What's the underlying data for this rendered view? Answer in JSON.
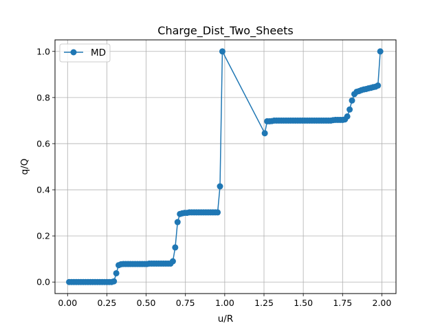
{
  "chart_data": {
    "type": "line",
    "title": "Charge_Dist_Two_Sheets",
    "xlabel": "u/R",
    "ylabel": "q/Q",
    "xlim": [
      -0.08,
      2.09
    ],
    "ylim": [
      -0.05,
      1.05
    ],
    "xticks": [
      0.0,
      0.25,
      0.5,
      0.75,
      1.0,
      1.25,
      1.5,
      1.75,
      2.0
    ],
    "xtick_labels": [
      "0.00",
      "0.25",
      "0.50",
      "0.75",
      "1.00",
      "1.25",
      "1.50",
      "1.75",
      "2.00"
    ],
    "yticks": [
      0.0,
      0.2,
      0.4,
      0.6,
      0.8,
      1.0
    ],
    "ytick_labels": [
      "0.0",
      "0.2",
      "0.4",
      "0.6",
      "0.8",
      "1.0"
    ],
    "grid": true,
    "legend_position": "top-left",
    "series": [
      {
        "name": "MD",
        "color": "#1f77b4",
        "marker": "circle",
        "x": [
          0.01,
          0.025,
          0.04,
          0.055,
          0.07,
          0.085,
          0.1,
          0.115,
          0.13,
          0.145,
          0.16,
          0.175,
          0.19,
          0.205,
          0.22,
          0.235,
          0.25,
          0.265,
          0.28,
          0.295,
          0.31,
          0.325,
          0.34,
          0.355,
          0.37,
          0.385,
          0.4,
          0.415,
          0.43,
          0.445,
          0.46,
          0.475,
          0.49,
          0.505,
          0.52,
          0.535,
          0.55,
          0.565,
          0.58,
          0.595,
          0.61,
          0.625,
          0.64,
          0.655,
          0.67,
          0.685,
          0.7,
          0.715,
          0.73,
          0.745,
          0.76,
          0.775,
          0.79,
          0.805,
          0.82,
          0.835,
          0.85,
          0.865,
          0.88,
          0.895,
          0.91,
          0.925,
          0.94,
          0.955,
          0.97,
          0.985,
          1.255,
          1.27,
          1.285,
          1.3,
          1.315,
          1.33,
          1.345,
          1.36,
          1.375,
          1.39,
          1.405,
          1.42,
          1.435,
          1.45,
          1.465,
          1.48,
          1.495,
          1.51,
          1.525,
          1.54,
          1.555,
          1.57,
          1.585,
          1.6,
          1.615,
          1.63,
          1.645,
          1.66,
          1.675,
          1.69,
          1.705,
          1.72,
          1.735,
          1.75,
          1.765,
          1.78,
          1.795,
          1.81,
          1.825,
          1.84,
          1.855,
          1.87,
          1.885,
          1.9,
          1.915,
          1.93,
          1.945,
          1.96,
          1.975,
          1.99
        ],
        "y": [
          0.0,
          0.0,
          0.0,
          0.0,
          0.0,
          0.0,
          0.0,
          0.0,
          0.0,
          0.0,
          0.0,
          0.0,
          0.0,
          0.0,
          0.0,
          0.0,
          0.0,
          0.0,
          0.0,
          0.003,
          0.038,
          0.073,
          0.077,
          0.078,
          0.078,
          0.078,
          0.078,
          0.078,
          0.078,
          0.078,
          0.078,
          0.078,
          0.078,
          0.078,
          0.08,
          0.08,
          0.08,
          0.08,
          0.08,
          0.08,
          0.08,
          0.08,
          0.08,
          0.08,
          0.09,
          0.15,
          0.26,
          0.295,
          0.298,
          0.3,
          0.3,
          0.302,
          0.302,
          0.302,
          0.302,
          0.302,
          0.302,
          0.302,
          0.302,
          0.302,
          0.302,
          0.302,
          0.302,
          0.302,
          0.415,
          1.0,
          0.645,
          0.697,
          0.697,
          0.698,
          0.7,
          0.7,
          0.7,
          0.7,
          0.7,
          0.7,
          0.7,
          0.7,
          0.7,
          0.7,
          0.7,
          0.7,
          0.7,
          0.7,
          0.7,
          0.7,
          0.7,
          0.7,
          0.7,
          0.7,
          0.7,
          0.7,
          0.7,
          0.7,
          0.7,
          0.702,
          0.703,
          0.703,
          0.703,
          0.703,
          0.705,
          0.718,
          0.748,
          0.787,
          0.815,
          0.825,
          0.828,
          0.832,
          0.835,
          0.837,
          0.84,
          0.842,
          0.845,
          0.847,
          0.852,
          1.0
        ]
      }
    ]
  }
}
